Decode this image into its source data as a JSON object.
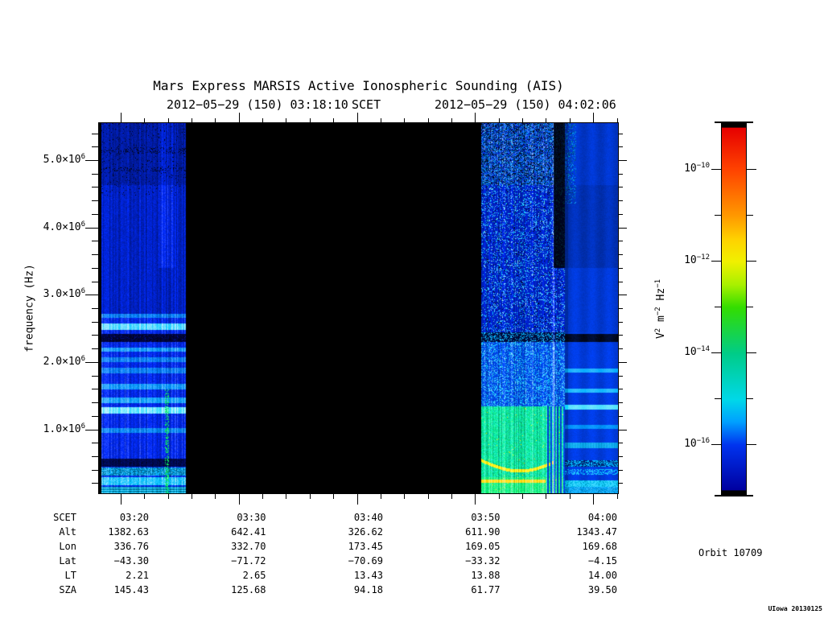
{
  "title": "Mars Express MARSIS Active Ionospheric Sounding (AIS)",
  "scet_line": {
    "start": "2012−05−29 (150) 03:18:10",
    "label": "SCET",
    "end": "2012−05−29 (150) 04:02:06"
  },
  "orbit_label": "Orbit 10709",
  "credit": "UIowa 20130125",
  "ephemeris_table": {
    "rows": [
      {
        "label": "SCET",
        "values": [
          "03:20",
          "03:30",
          "03:40",
          "03:50",
          "04:00"
        ]
      },
      {
        "label": "Alt",
        "values": [
          "1382.63",
          "642.41",
          "326.62",
          "611.90",
          "1343.47"
        ]
      },
      {
        "label": "Lon",
        "values": [
          "336.76",
          "332.70",
          "173.45",
          "169.05",
          "169.68"
        ]
      },
      {
        "label": "Lat",
        "values": [
          "−43.30",
          "−71.72",
          "−70.69",
          "−33.32",
          "−4.15"
        ]
      },
      {
        "label": "LT",
        "values": [
          "2.21",
          "2.65",
          "13.43",
          "13.88",
          "14.00"
        ]
      },
      {
        "label": "SZA",
        "values": [
          "145.43",
          "125.68",
          "94.18",
          "61.77",
          "39.50"
        ]
      }
    ]
  },
  "chart_data": {
    "type": "heatmap",
    "subtype": "radar-sounder spectrogram (frequency vs time, log power color scale)",
    "title": "Mars Express MARSIS Active Ionospheric Sounding (AIS)",
    "x_axis": {
      "label": "SCET",
      "date": "2012−05−29 (150)",
      "start_time": "03:18:10",
      "end_time": "04:02:06",
      "major_ticks": [
        "03:20",
        "03:30",
        "03:40",
        "03:50",
        "04:00"
      ],
      "minor_tick_step_min": 2
    },
    "y_axis": {
      "label": "frequency (Hz)",
      "range_hz": [
        50000,
        5550000
      ],
      "major_ticks": [
        {
          "text": "1.0×10",
          "sup": "6",
          "hz": 1000000
        },
        {
          "text": "2.0×10",
          "sup": "6",
          "hz": 2000000
        },
        {
          "text": "3.0×10",
          "sup": "6",
          "hz": 3000000
        },
        {
          "text": "4.0×10",
          "sup": "6",
          "hz": 4000000
        },
        {
          "text": "5.0×10",
          "sup": "6",
          "hz": 5000000
        }
      ],
      "minor_tick_step_hz": 200000
    },
    "colorbar": {
      "label_parts": [
        {
          "t": "V",
          "sup": "2"
        },
        {
          "t": " m",
          "sup": "−2"
        },
        {
          "t": " Hz",
          "sup": "−1"
        }
      ],
      "scale": "log10",
      "range_exp": [
        -17.1,
        -9.0
      ],
      "major_ticks": [
        {
          "text": "10",
          "sup": "−10",
          "exp": -10
        },
        {
          "text": "10",
          "sup": "−12",
          "exp": -12
        },
        {
          "text": "10",
          "sup": "−14",
          "exp": -14
        },
        {
          "text": "10",
          "sup": "−16",
          "exp": -16
        }
      ],
      "minor_tick_exps": [
        -11,
        -13,
        -15
      ],
      "gradient_stops": [
        [
          "0%",
          "#000000"
        ],
        [
          "0.9%",
          "#000000"
        ],
        [
          "1.1%",
          "#e60000"
        ],
        [
          "12.6%",
          "#ff4400"
        ],
        [
          "24.9%",
          "#ff9900"
        ],
        [
          "31.2%",
          "#ffd200"
        ],
        [
          "37.2%",
          "#f0f000"
        ],
        [
          "43.5%",
          "#a8f000"
        ],
        [
          "49.6%",
          "#33dd00"
        ],
        [
          "62.1%",
          "#00cc88"
        ],
        [
          "74.5%",
          "#00d8e8"
        ],
        [
          "80.5%",
          "#00a0ff"
        ],
        [
          "86.8%",
          "#0033ee"
        ],
        [
          "98.9%",
          "#0000a0"
        ],
        [
          "99.1%",
          "#000000"
        ],
        [
          "100%",
          "#000000"
        ]
      ]
    },
    "regions": [
      {
        "name": "pre-pass noise band",
        "scet_start": "03:18:10",
        "scet_end": "03:25:30",
        "appearance": "faint blue broadband receiver noise; bright narrowband horizontal lines near 2.45 MHz and 1.2 MHz; dark absorption band near 2.3 MHz; bright speckled rows below 0.6 MHz; green dotted interference trail near 03:23"
      },
      {
        "name": "data gap",
        "scet_start": "03:25:30",
        "scet_end": "03:50:15",
        "appearance": "no data (black fill)"
      },
      {
        "name": "active sounding segment",
        "scet_start": "03:50:15",
        "scet_end": "04:02:06",
        "appearance": "dense blue/cyan speckle at all frequencies; dark band near 2.3 MHz; strong cyan-green echo region below ~1.3 MHz until ~03:57 with yellow ionospheric echo traces near 0.3–0.6 MHz; smoother blue with cyan horizontal banding until 04:02"
      }
    ]
  }
}
